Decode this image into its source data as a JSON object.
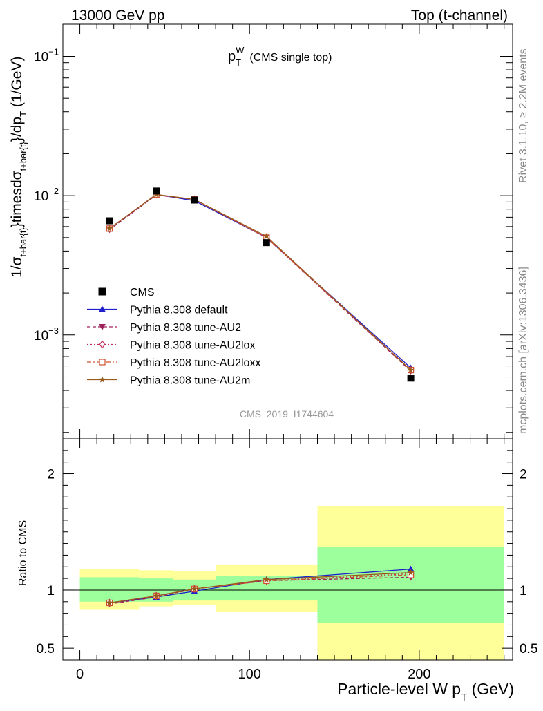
{
  "header": {
    "left": "13000 GeV pp",
    "right": "Top (t-channel)"
  },
  "side_labels": {
    "rivet": "Rivet 3.1.10, ≥ 2.2M events",
    "mcplots": "mcplots.cern.ch [arXiv:1306.3436]"
  },
  "chart_data": [
    {
      "type": "line",
      "title_main": "p",
      "title_sub": "T",
      "title_sup": "W",
      "title_rest": "(CMS single top)",
      "ylabel": "1/σ_{t+bar{t}}timesdσ_{t+bar{t}}/dp_{T}  (1/GeV)",
      "ylabel_parts": [
        "1/σ",
        "t+bar{t}",
        "}timesdσ",
        "t+bar{t}",
        "}/dp",
        "T",
        "  (1/GeV)"
      ],
      "yscale": "log",
      "ylim": [
        0.00018,
        0.17
      ],
      "xlim": [
        -10,
        255
      ],
      "yticks": [
        {
          "value": 0.001,
          "base": "10",
          "exp": "−3"
        },
        {
          "value": 0.01,
          "base": "10",
          "exp": "−2"
        },
        {
          "value": 0.1,
          "base": "10",
          "exp": "−1"
        }
      ],
      "watermark": "CMS_2019_I1744604",
      "data_series": {
        "name": "CMS",
        "color": "#000000",
        "x": [
          17.5,
          45,
          67.5,
          110,
          195
        ],
        "y": [
          0.0066,
          0.0108,
          0.0093,
          0.0046,
          0.00049
        ]
      },
      "series": [
        {
          "name": "Pythia 8.308 default",
          "color": "#1f1fcc",
          "marker": "triangle-up",
          "dash": "",
          "x": [
            17.5,
            45,
            67.5,
            110,
            195
          ],
          "y": [
            0.0058,
            0.0102,
            0.0092,
            0.005,
            0.00058
          ]
        },
        {
          "name": "Pythia 8.308 tune-AU2",
          "color": "#a0205a",
          "marker": "triangle-down",
          "dash": "5,3",
          "x": [
            17.5,
            45,
            67.5,
            110,
            195
          ],
          "y": [
            0.0057,
            0.0101,
            0.0094,
            0.005,
            0.00055
          ]
        },
        {
          "name": "Pythia 8.308 tune-AU2lox",
          "color": "#c0305a",
          "marker": "diamond-open",
          "dash": "2,3",
          "x": [
            17.5,
            45,
            67.5,
            110,
            195
          ],
          "y": [
            0.0058,
            0.0102,
            0.0094,
            0.005,
            0.00056
          ]
        },
        {
          "name": "Pythia 8.308 tune-AU2loxx",
          "color": "#d05030",
          "marker": "square-open",
          "dash": "6,3,2,3",
          "x": [
            17.5,
            45,
            67.5,
            110,
            195
          ],
          "y": [
            0.0058,
            0.0102,
            0.0094,
            0.005,
            0.00056
          ]
        },
        {
          "name": "Pythia 8.308 tune-AU2m",
          "color": "#9a5a1a",
          "marker": "star",
          "dash": "",
          "x": [
            17.5,
            45,
            67.5,
            110,
            195
          ],
          "y": [
            0.0058,
            0.0102,
            0.0094,
            0.0051,
            0.00056
          ]
        }
      ],
      "legend_placement": "lower-left"
    },
    {
      "type": "line",
      "ylabel": "Ratio to CMS",
      "xlabel_main": "Particle-level W p",
      "xlabel_sub": "T",
      "xlabel_rest": " (GeV)",
      "ylim": [
        0.4,
        2.3
      ],
      "xlim": [
        -10,
        255
      ],
      "xticks": [
        0,
        100,
        200
      ],
      "yticks": [
        0.5,
        1,
        2
      ],
      "reference_line": 1,
      "bands": [
        {
          "x": [
            0,
            35
          ],
          "inner": [
            0.9,
            1.11
          ],
          "outer": [
            0.83,
            1.18
          ]
        },
        {
          "x": [
            35,
            55
          ],
          "inner": [
            0.9,
            1.1
          ],
          "outer": [
            0.86,
            1.17
          ]
        },
        {
          "x": [
            55,
            80
          ],
          "inner": [
            0.91,
            1.09
          ],
          "outer": [
            0.87,
            1.16
          ]
        },
        {
          "x": [
            80,
            140
          ],
          "inner": [
            0.91,
            1.12
          ],
          "outer": [
            0.81,
            1.22
          ]
        },
        {
          "x": [
            140,
            250
          ],
          "inner": [
            0.72,
            1.37
          ],
          "outer": [
            0.38,
            1.72
          ]
        }
      ],
      "band_colors": {
        "inner": "#9cff9c",
        "outer": "#ffff99"
      },
      "series": [
        {
          "name": "Pythia 8.308 default",
          "x": [
            17.5,
            45,
            67.5,
            110,
            195
          ],
          "y": [
            0.89,
            0.94,
            0.99,
            1.09,
            1.18
          ]
        },
        {
          "name": "Pythia 8.308 tune-AU2",
          "x": [
            17.5,
            45,
            67.5,
            110,
            195
          ],
          "y": [
            0.88,
            0.94,
            1.01,
            1.08,
            1.11
          ]
        },
        {
          "name": "Pythia 8.308 tune-AU2lox",
          "x": [
            17.5,
            45,
            67.5,
            110,
            195
          ],
          "y": [
            0.89,
            0.95,
            1.01,
            1.08,
            1.14
          ]
        },
        {
          "name": "Pythia 8.308 tune-AU2loxx",
          "x": [
            17.5,
            45,
            67.5,
            110,
            195
          ],
          "y": [
            0.89,
            0.95,
            1.01,
            1.08,
            1.13
          ]
        },
        {
          "name": "Pythia 8.308 tune-AU2m",
          "x": [
            17.5,
            45,
            67.5,
            110,
            195
          ],
          "y": [
            0.89,
            0.95,
            1.01,
            1.09,
            1.15
          ]
        }
      ]
    }
  ]
}
